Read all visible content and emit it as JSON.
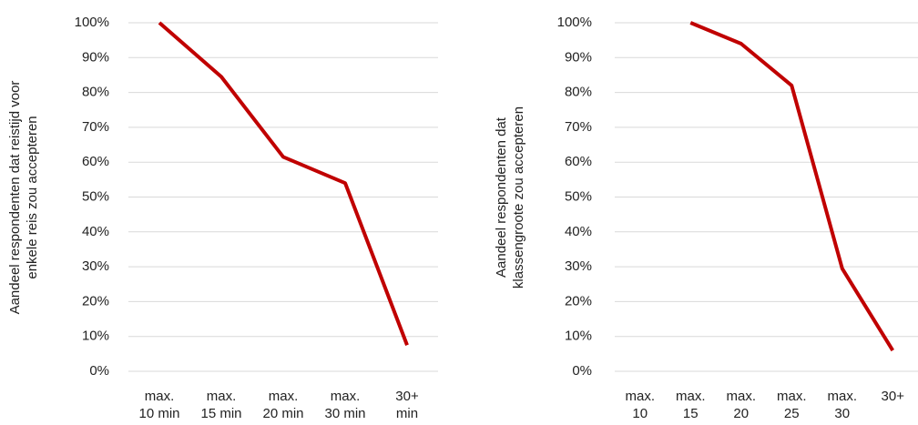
{
  "chart_data": [
    {
      "type": "line",
      "y_label": "Aandeel respondenten dat reistijd voor\nenkele reis zou accepteren",
      "categories": [
        "max.\n10 min",
        "max.\n15 min",
        "max.\n20 min",
        "max.\n30 min",
        "30+\nmin"
      ],
      "series": [
        {
          "color": "#c00000",
          "values": [
            100,
            84.5,
            61.5,
            54,
            7.5
          ]
        }
      ],
      "ylim": [
        0,
        100
      ],
      "yticks": [
        {
          "value": 0,
          "label": "0%"
        },
        {
          "value": 10,
          "label": "10%"
        },
        {
          "value": 20,
          "label": "20%"
        },
        {
          "value": 30,
          "label": "30%"
        },
        {
          "value": 40,
          "label": "40%"
        },
        {
          "value": 50,
          "label": "50%"
        },
        {
          "value": 60,
          "label": "60%"
        },
        {
          "value": 70,
          "label": "70%"
        },
        {
          "value": 80,
          "label": "80%"
        },
        {
          "value": 90,
          "label": "90%"
        },
        {
          "value": 100,
          "label": "100%"
        }
      ],
      "grid": true
    },
    {
      "type": "line",
      "y_label": "Aandeel respondenten dat\nklassengroote zou accepteren",
      "categories": [
        "max.\n10",
        "max.\n15",
        "max.\n20",
        "max.\n25",
        "max.\n30",
        "30+"
      ],
      "series": [
        {
          "color": "#c00000",
          "values": [
            null,
            100,
            94,
            82,
            29.5,
            6
          ]
        }
      ],
      "ylim": [
        0,
        100
      ],
      "yticks": [
        {
          "value": 0,
          "label": "0%"
        },
        {
          "value": 10,
          "label": "10%"
        },
        {
          "value": 20,
          "label": "20%"
        },
        {
          "value": 30,
          "label": "30%"
        },
        {
          "value": 40,
          "label": "40%"
        },
        {
          "value": 50,
          "label": "50%"
        },
        {
          "value": 60,
          "label": "60%"
        },
        {
          "value": 70,
          "label": "70%"
        },
        {
          "value": 80,
          "label": "80%"
        },
        {
          "value": 90,
          "label": "90%"
        },
        {
          "value": 100,
          "label": "100%"
        }
      ],
      "grid": true
    }
  ]
}
